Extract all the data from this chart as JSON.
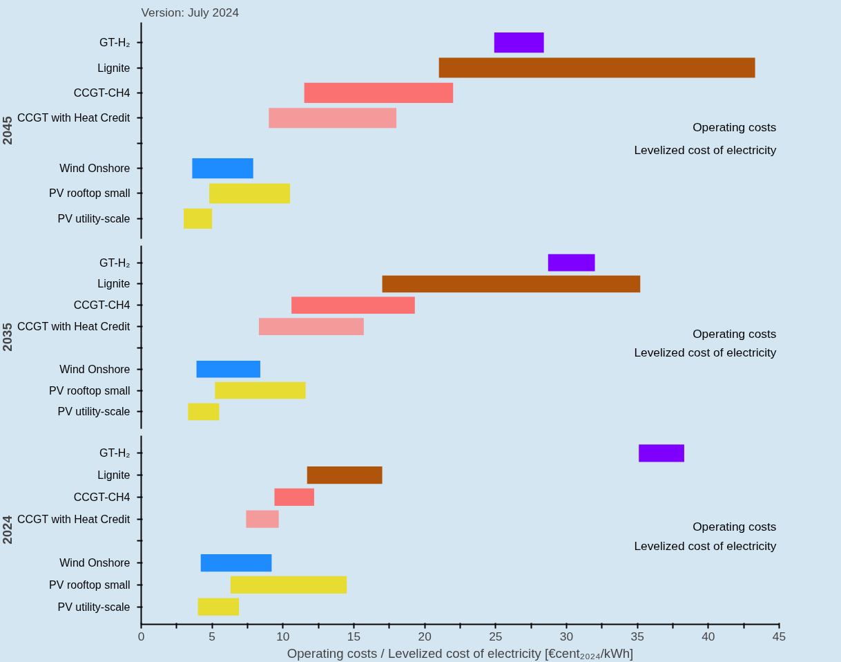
{
  "chart_data": [
    {
      "type": "bar",
      "orientation": "horizontal",
      "title": "Version: July 2024",
      "ylabel": "2045",
      "tick_labels": "y",
      "categories": [
        "GT-H₂",
        "Lignite",
        "CCGT-CH4",
        "CCGT with Heat Credit",
        null,
        "Wind Onshore",
        "PV rooftop small",
        "PV utility-scale"
      ],
      "base": [
        24.9,
        21.0,
        11.5,
        9.0,
        null,
        3.6,
        4.8,
        3.0
      ],
      "values": [
        3.5,
        22.3,
        10.5,
        9.0,
        null,
        4.3,
        5.7,
        2.0
      ],
      "colors": [
        "#8000ff",
        "#b0540c",
        "#fb7070",
        "#f59a9a",
        "#ffffff",
        "#1e8cff",
        "#e6dc32",
        "#e6dc32"
      ],
      "xlim": [
        0,
        45
      ],
      "annotations": [
        "Operating costs",
        "Levelized cost of electricity"
      ]
    },
    {
      "type": "bar",
      "orientation": "horizontal",
      "ylabel": "2035",
      "tick_labels": "y",
      "categories": [
        "GT-H₂",
        "Lignite",
        "CCGT-CH4",
        "CCGT with Heat Credit",
        null,
        "Wind Onshore",
        "PV rooftop small",
        "PV utility-scale"
      ],
      "base": [
        28.7,
        17.0,
        10.6,
        8.3,
        null,
        3.9,
        5.2,
        3.3
      ],
      "values": [
        3.3,
        18.2,
        8.7,
        7.4,
        null,
        4.5,
        6.4,
        2.2
      ],
      "colors": [
        "#8000ff",
        "#b0540c",
        "#fb7070",
        "#f59a9a",
        "#ffffff",
        "#1e8cff",
        "#e6dc32",
        "#e6dc32"
      ],
      "xlim": [
        0,
        45
      ],
      "annotations": [
        "Operating costs",
        "Levelized cost of electricity"
      ]
    },
    {
      "type": "bar",
      "orientation": "horizontal",
      "ylabel": "2024",
      "xlabel": "Operating costs / Levelized cost of electricity [€cent₂₀₂₄/kWh]",
      "categories": [
        "GT-H₂",
        "Lignite",
        "CCGT-CH4",
        "CCGT with Heat Credit",
        null,
        "Wind Onshore",
        "PV rooftop small",
        "PV utility-scale"
      ],
      "base": [
        35.1,
        11.7,
        9.4,
        7.4,
        null,
        4.2,
        6.3,
        4.0
      ],
      "values": [
        3.2,
        5.3,
        2.8,
        2.3,
        null,
        5.0,
        8.2,
        2.9
      ],
      "colors": [
        "#8000ff",
        "#b0540c",
        "#fb7070",
        "#f59a9a",
        "#ffffff",
        "#1e8cff",
        "#e6dc32",
        "#e6dc32"
      ],
      "xlim": [
        0,
        45
      ],
      "xticks": [
        0,
        {
          "value": 2.5,
          "label": null
        },
        5,
        {
          "value": 7.5,
          "label": null
        },
        10,
        {
          "value": 12.5,
          "label": null
        },
        15,
        {
          "value": 17.5,
          "label": null
        },
        20,
        {
          "value": 22.5,
          "label": null
        },
        25,
        {
          "value": 27.5,
          "label": null
        },
        30,
        {
          "value": 32.5,
          "label": null
        },
        35,
        {
          "value": 37.5,
          "label": null
        },
        40,
        {
          "value": 42.5,
          "label": null
        },
        45
      ],
      "annotations": [
        "Operating costs",
        "Levelized cost of electricity"
      ]
    }
  ]
}
